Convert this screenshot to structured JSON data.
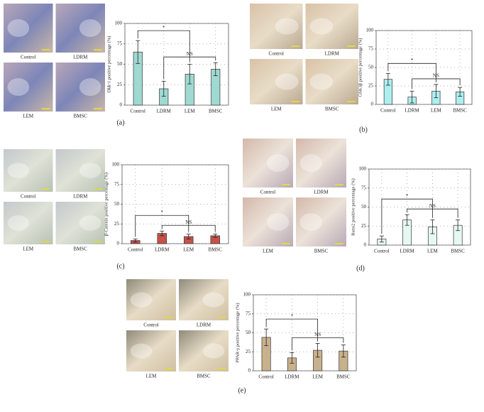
{
  "chart_data": [
    {
      "type": "bar",
      "panel_label": "(a)",
      "ylabel": "Dkk-1 positive percentage (%)",
      "micrograph_labels": [
        "Control",
        "LDRM",
        "LEM",
        "BMSC"
      ],
      "categories": [
        "Control",
        "LDRM",
        "LEM",
        "BMSC"
      ],
      "values": [
        65,
        20,
        38,
        44
      ],
      "errors": [
        14,
        9,
        12,
        8
      ],
      "color": "#9fd9d2",
      "ylim": [
        0,
        100
      ],
      "yticks": [
        0,
        25,
        50,
        75,
        100
      ],
      "grid": true,
      "annotations": [
        "*",
        "NS"
      ]
    },
    {
      "type": "bar",
      "panel_label": "(b)",
      "ylabel": "GSK3β positive percentage (%)",
      "micrograph_labels": [
        "Control",
        "LDRM",
        "LEM",
        "BMSC"
      ],
      "categories": [
        "Control",
        "LDRM",
        "LEM",
        "BMSC"
      ],
      "values": [
        34,
        10,
        18,
        17
      ],
      "errors": [
        8,
        8,
        9,
        6
      ],
      "color": "#aeeeee",
      "ylim": [
        0,
        100
      ],
      "yticks": [
        0,
        25,
        50,
        75,
        100
      ],
      "grid": true,
      "annotations": [
        "*",
        "NS"
      ]
    },
    {
      "type": "bar",
      "panel_label": "(c)",
      "ylabel": "β-Catenin positive percentage (%)",
      "micrograph_labels": [
        "Control",
        "LDRM",
        "LEM",
        "BMSC"
      ],
      "categories": [
        "Control",
        "LDRM",
        "LEM",
        "BMSC"
      ],
      "values": [
        4,
        13,
        9,
        10
      ],
      "errors": [
        2,
        3,
        3,
        2
      ],
      "color": "#c5524a",
      "ylim": [
        0,
        100
      ],
      "yticks": [
        0,
        25,
        50,
        75,
        100
      ],
      "grid": true,
      "annotations": [
        "*",
        "NS"
      ]
    },
    {
      "type": "bar",
      "panel_label": "(d)",
      "ylabel": "Runx2 positive percentage (%)",
      "micrograph_labels": [
        "Control",
        "LDRM",
        "LEM",
        "BMSC"
      ],
      "categories": [
        "Control",
        "LDRM",
        "LEM",
        "BMSC"
      ],
      "values": [
        8,
        33,
        24,
        26
      ],
      "errors": [
        4,
        7,
        9,
        7
      ],
      "color": "#e6f8f1",
      "ylim": [
        0,
        100
      ],
      "yticks": [
        0,
        25,
        50,
        75,
        100
      ],
      "grid": true,
      "annotations": [
        "*",
        "NS"
      ]
    },
    {
      "type": "bar",
      "panel_label": "(e)",
      "ylabel": "PPAR-γ positive percentage (%)",
      "micrograph_labels": [
        "Control",
        "LDRM",
        "LEM",
        "BMSC"
      ],
      "categories": [
        "Control",
        "LDRM",
        "LEM",
        "BMSC"
      ],
      "values": [
        44,
        17,
        27,
        26
      ],
      "errors": [
        11,
        7,
        9,
        8
      ],
      "color": "#c9b18d",
      "ylim": [
        0,
        100
      ],
      "yticks": [
        0,
        25,
        50,
        75,
        100
      ],
      "grid": true,
      "annotations": [
        "*",
        "NS"
      ]
    }
  ]
}
